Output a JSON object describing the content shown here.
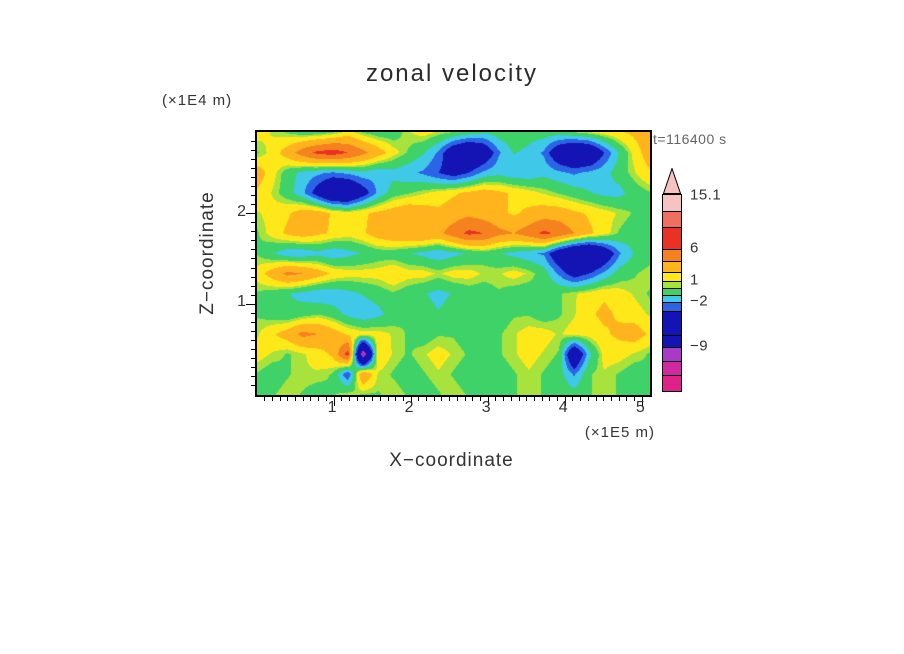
{
  "chart_data": {
    "type": "heatmap",
    "title": "zonal velocity",
    "xlabel": "X−coordinate",
    "x_unit": "(×1E5 m)",
    "ylabel": "Z−coordinate",
    "y_unit": "(×1E4 m)",
    "annotation": "t=116400 s",
    "axes": {
      "x_max": 5.1,
      "z_max": 2.9,
      "x_ticks": [
        1,
        2,
        3,
        4,
        5
      ],
      "z_ticks": [
        1,
        2
      ],
      "minor_tick_step": 0.1
    },
    "color_scale": {
      "boundaries": [
        -10,
        -8.5,
        -3,
        -1.8,
        -0.6,
        0.6,
        1.1,
        2.2,
        4,
        6,
        9,
        12
      ],
      "colors": [
        "#E0218A",
        "#A83AC8",
        "#1414B4",
        "#2B64E6",
        "#3FC8E8",
        "#3ED268",
        "#A8E23C",
        "#FFE81A",
        "#FFB41E",
        "#F5821E",
        "#E93223",
        "#F07060",
        "#F6C2C2"
      ]
    },
    "colorbar": {
      "arrow_color": "#F6C2C2",
      "segments": [
        {
          "c": "#F6C2C2",
          "h": 16
        },
        {
          "c": "#F07060",
          "h": 16
        },
        {
          "c": "#E93223",
          "h": 22
        },
        {
          "c": "#F5821E",
          "h": 12
        },
        {
          "c": "#FFB41E",
          "h": 11
        },
        {
          "c": "#FFE81A",
          "h": 9
        },
        {
          "c": "#A8E23C",
          "h": 7
        },
        {
          "c": "#3ED268",
          "h": 7
        },
        {
          "c": "#3FC8E8",
          "h": 7
        },
        {
          "c": "#2B64E6",
          "h": 9
        },
        {
          "c": "#1414B4",
          "h": 24
        },
        {
          "c": "#1414B4",
          "h": 12
        },
        {
          "c": "#A83AC8",
          "h": 14
        },
        {
          "c": "#D028A0",
          "h": 14
        },
        {
          "c": "#E0218A",
          "h": 16
        }
      ],
      "labels": [
        {
          "text": "15.1",
          "y": 27
        },
        {
          "text": "6",
          "y": 80
        },
        {
          "text": "1",
          "y": 112
        },
        {
          "text": "−2",
          "y": 133
        },
        {
          "text": "−9",
          "y": 178
        }
      ]
    },
    "grid": {
      "description": "zonal velocity values on a uniform grid, rows top(z high) to bottom(z=0), cols left(x=0) to right(x max)",
      "values": [
        [
          1.5,
          1,
          0.5,
          0,
          0,
          0.5,
          1.5,
          0.5,
          0,
          0,
          1,
          1.5,
          1,
          0.5,
          0,
          -0.5,
          0,
          0.5,
          0,
          0,
          0,
          0.5,
          1,
          1.5,
          2,
          2.5,
          3
        ],
        [
          0.5,
          1.5,
          3,
          5,
          6.5,
          7,
          6,
          4.5,
          3,
          1.5,
          0.5,
          -0.5,
          -2,
          -5,
          -6.5,
          -5,
          -2,
          -0.5,
          -1,
          -2,
          -5,
          -6.5,
          -6,
          -3,
          -0.5,
          1.5,
          3
        ],
        [
          3,
          1.5,
          0,
          -1,
          -1.5,
          -2,
          -1.5,
          -1,
          -1.5,
          -1,
          -1.5,
          -2,
          -3,
          -4,
          -3,
          -1.5,
          -1,
          -1.5,
          -1.5,
          -1,
          -1.5,
          -2,
          -1.5,
          -1,
          0,
          1,
          2
        ],
        [
          2,
          1,
          0,
          -1.5,
          -4,
          -6.5,
          -6.5,
          -4,
          -1.5,
          0,
          0.5,
          1,
          1.5,
          2,
          2.5,
          3,
          2.5,
          2,
          1.5,
          1,
          0.5,
          0,
          -0.5,
          -1,
          -1,
          0,
          0.5
        ],
        [
          1,
          1.5,
          2,
          3,
          3,
          2,
          1.5,
          2,
          2.5,
          3,
          3.5,
          3,
          2.5,
          3,
          3.5,
          3,
          2.5,
          2,
          2.5,
          3,
          3,
          2.5,
          2,
          1.5,
          1,
          0.5,
          0
        ],
        [
          0.5,
          1.5,
          2.5,
          3,
          2.5,
          2,
          1.5,
          2,
          3,
          3.5,
          4,
          4,
          3.5,
          5,
          6.5,
          6,
          4.5,
          4,
          5,
          6.5,
          5.5,
          4,
          2.5,
          1.5,
          0.5,
          0,
          -0.5
        ],
        [
          0.5,
          -0.5,
          -1.5,
          -1.5,
          -1,
          -1.5,
          -1,
          -0.5,
          0,
          0,
          -0.5,
          -1,
          -1.5,
          -1,
          -0.5,
          0,
          -0.5,
          -1,
          -1.5,
          -2,
          -5,
          -7,
          -7.5,
          -5,
          -2,
          -0.5,
          0
        ],
        [
          1.5,
          3,
          4.5,
          4,
          3,
          2,
          1.5,
          1.5,
          1.5,
          2,
          1.5,
          1.5,
          1,
          1.5,
          1.5,
          1,
          1,
          1.5,
          1,
          0,
          -2,
          -4,
          -3,
          -1.5,
          0,
          0.5,
          1
        ],
        [
          0.5,
          0,
          -0.5,
          -1,
          -1.5,
          -1.5,
          -1,
          -0.5,
          0,
          0.5,
          0,
          -0.5,
          -1,
          -0.5,
          0,
          0,
          0.5,
          0,
          0,
          0.5,
          0.5,
          1,
          1.5,
          2,
          1.5,
          1,
          0.5
        ],
        [
          0.5,
          0,
          -0.5,
          0,
          0.5,
          0,
          -1,
          -1.5,
          -1,
          0,
          0.5,
          0,
          -0.5,
          0,
          0.5,
          0,
          0,
          0.5,
          0.5,
          0,
          0.5,
          1,
          2,
          2.5,
          2,
          1.5,
          1
        ],
        [
          1,
          2,
          3,
          4.5,
          4,
          3,
          2,
          1.5,
          1.5,
          1,
          0.5,
          0,
          0.5,
          0.5,
          0,
          0,
          0.5,
          1,
          1.5,
          1.5,
          1,
          1.5,
          1.5,
          2,
          2.5,
          3,
          2
        ],
        [
          1.5,
          1,
          0.5,
          1,
          1.5,
          2.5,
          7,
          -11,
          2,
          1,
          0.5,
          1,
          1.5,
          1,
          0.5,
          0,
          0.5,
          1,
          1.5,
          1,
          0.5,
          -6,
          -1,
          1.5,
          1.5,
          1,
          0.5
        ],
        [
          0.5,
          0,
          0.5,
          1,
          1,
          0.5,
          -3,
          4,
          1,
          0.5,
          0,
          0.5,
          1,
          0.5,
          0,
          -0.5,
          0,
          0.5,
          1,
          0.5,
          0,
          -2,
          0.5,
          1,
          0.5,
          0,
          0.5
        ],
        [
          0.5,
          0.5,
          1,
          0.5,
          0,
          0.5,
          1,
          0.5,
          0.5,
          1,
          0.5,
          0,
          0.5,
          1,
          0.5,
          0,
          0.5,
          0.5,
          1,
          0.5,
          0.5,
          0,
          0.5,
          1,
          0.5,
          0.5,
          0.5
        ]
      ]
    }
  }
}
